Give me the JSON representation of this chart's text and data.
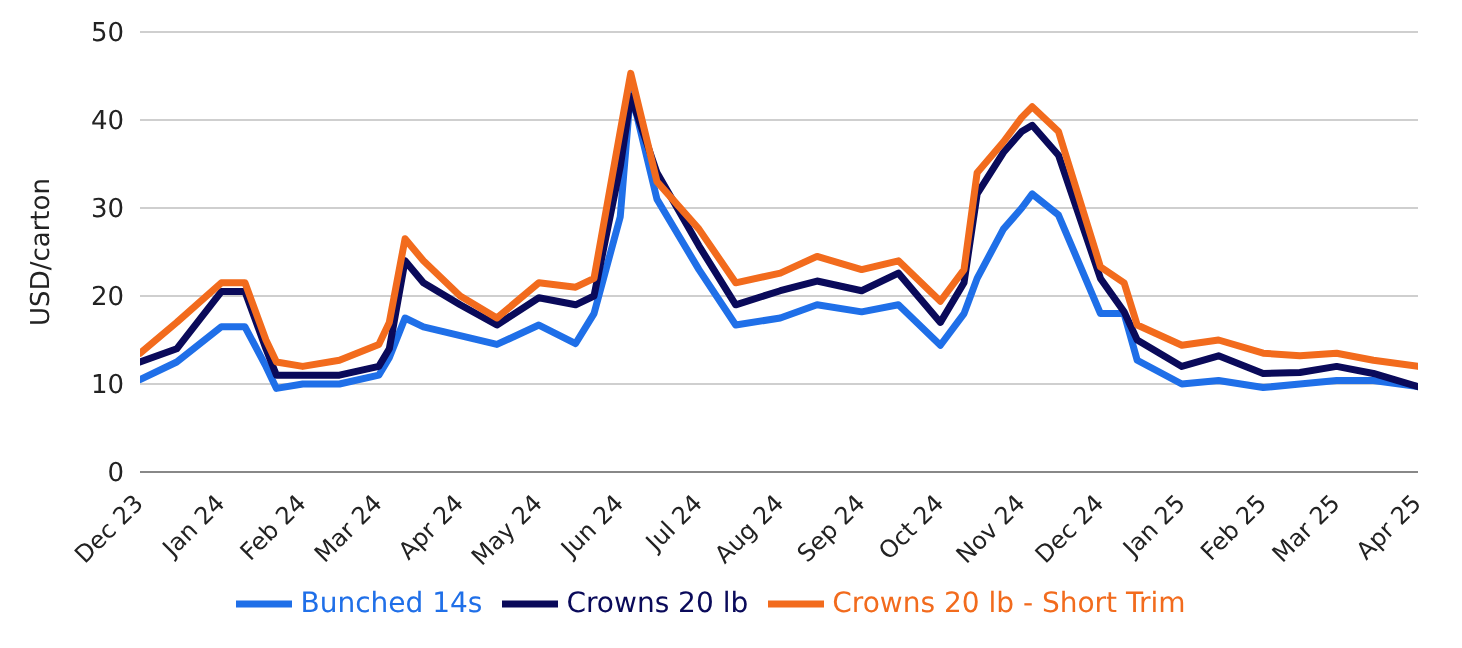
{
  "chart_data": {
    "type": "line",
    "ylabel": "USD/carton",
    "x": [
      "2023-12-01",
      "2023-12-15",
      "2024-01-01",
      "2024-01-10",
      "2024-01-18",
      "2024-01-22",
      "2024-02-01",
      "2024-02-15",
      "2024-03-01",
      "2024-03-05",
      "2024-03-11",
      "2024-03-18",
      "2024-04-01",
      "2024-04-15",
      "2024-05-01",
      "2024-05-15",
      "2024-05-22",
      "2024-06-01",
      "2024-06-05",
      "2024-06-15",
      "2024-07-01",
      "2024-07-15",
      "2024-08-01",
      "2024-08-15",
      "2024-09-01",
      "2024-09-15",
      "2024-10-01",
      "2024-10-10",
      "2024-10-15",
      "2024-10-25",
      "2024-11-01",
      "2024-11-05",
      "2024-11-15",
      "2024-12-01",
      "2024-12-10",
      "2024-12-15",
      "2025-01-01",
      "2025-01-15",
      "2025-02-01",
      "2025-02-15",
      "2025-03-01",
      "2025-03-15",
      "2025-04-01"
    ],
    "series": [
      {
        "name": "Bunched 14s",
        "color": "#1f6fe8",
        "values": [
          10.5,
          12.5,
          16.5,
          16.5,
          12,
          9.5,
          10,
          10,
          11,
          13,
          17.5,
          16.5,
          15.5,
          14.5,
          16.7,
          14.6,
          18,
          29,
          43.4,
          31,
          23,
          16.7,
          17.5,
          19,
          18.2,
          19,
          14.4,
          18,
          22,
          27.6,
          30,
          31.6,
          29.2,
          18,
          18,
          12.7,
          10,
          10.4,
          9.6,
          10,
          10.4,
          10.4,
          9.7
        ]
      },
      {
        "name": "Crowns 20 lb",
        "color": "#0a0a5a",
        "values": [
          12.5,
          14,
          20.5,
          20.5,
          14,
          11,
          11,
          11,
          12,
          14,
          24,
          21.5,
          19,
          16.7,
          19.8,
          19,
          20,
          34.7,
          42.7,
          34,
          25.7,
          19,
          20.6,
          21.7,
          20.6,
          22.6,
          17,
          21.5,
          31.6,
          36.3,
          38.7,
          39.4,
          36,
          22,
          18.2,
          15,
          12,
          13.2,
          11.2,
          11.3,
          12,
          11.2,
          9.7
        ]
      },
      {
        "name": "Crowns 20 lb - Short Trim",
        "color": "#f26b1d",
        "values": [
          13.5,
          17,
          21.5,
          21.5,
          15,
          12.5,
          12,
          12.7,
          14.5,
          17,
          26.5,
          24,
          20,
          17.5,
          21.5,
          21,
          22,
          38.7,
          45.3,
          33,
          27.6,
          21.5,
          22.6,
          24.5,
          23,
          24,
          19.4,
          23,
          34,
          37.5,
          40.3,
          41.5,
          38.7,
          23.3,
          21.5,
          16.7,
          14.4,
          15,
          13.5,
          13.2,
          13.5,
          12.7,
          12
        ]
      }
    ],
    "xlim": [
      "2023-12-01",
      "2025-04-01"
    ],
    "xticks": [
      {
        "value": "2023-12-01",
        "label": "Dec 23"
      },
      {
        "value": "2024-01-01",
        "label": "Jan 24"
      },
      {
        "value": "2024-02-01",
        "label": "Feb 24"
      },
      {
        "value": "2024-03-01",
        "label": "Mar 24"
      },
      {
        "value": "2024-04-01",
        "label": "Apr 24"
      },
      {
        "value": "2024-05-01",
        "label": "May 24"
      },
      {
        "value": "2024-06-01",
        "label": "Jun 24"
      },
      {
        "value": "2024-07-01",
        "label": "Jul 24"
      },
      {
        "value": "2024-08-01",
        "label": "Aug 24"
      },
      {
        "value": "2024-09-01",
        "label": "Sep 24"
      },
      {
        "value": "2024-10-01",
        "label": "Oct 24"
      },
      {
        "value": "2024-11-01",
        "label": "Nov 24"
      },
      {
        "value": "2024-12-01",
        "label": "Dec 24"
      },
      {
        "value": "2025-01-01",
        "label": "Jan 25"
      },
      {
        "value": "2025-02-01",
        "label": "Feb 25"
      },
      {
        "value": "2025-03-01",
        "label": "Mar 25"
      },
      {
        "value": "2025-04-01",
        "label": "Apr 25"
      }
    ],
    "ylim": [
      0,
      50
    ],
    "yticks": [
      0,
      10,
      20,
      30,
      40,
      50
    ],
    "grid": "y",
    "legend": "bottom",
    "marker": "none",
    "line_style": "solid"
  }
}
